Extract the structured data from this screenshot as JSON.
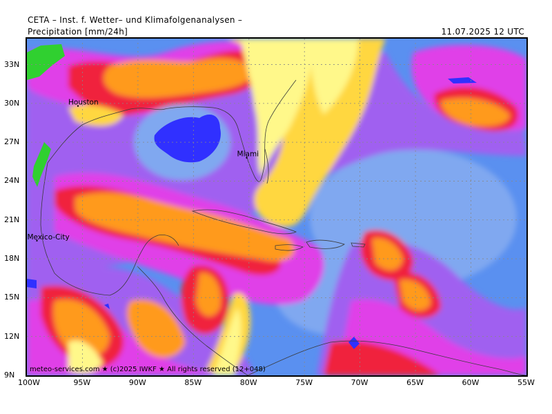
{
  "header": {
    "title": "CETA – Inst. f. Wetter– und Klimafolgenanalysen –",
    "subtitle": "Precipitation [mm/24h]",
    "valid_time": "11.07.2025 12 UTC"
  },
  "map": {
    "lon_range": [
      -100,
      -55
    ],
    "lat_range": [
      9,
      35
    ],
    "cities": [
      {
        "name": "Houston",
        "lon": -95.4,
        "lat": 29.8
      },
      {
        "name": "Miami",
        "lon": -80.2,
        "lat": 25.8
      },
      {
        "name": "Mexico-City",
        "lon": -99.1,
        "lat": 19.4
      }
    ],
    "credit": "meteo-services.com ★ (c)2025 IWKF ★ All rights reserved (12+048)",
    "x_ticks": [
      "100W",
      "95W",
      "90W",
      "85W",
      "80W",
      "75W",
      "70W",
      "65W",
      "60W",
      "55W"
    ],
    "y_ticks": [
      "33N",
      "30N",
      "27N",
      "24N",
      "21N",
      "18N",
      "15N",
      "12N",
      "9N"
    ],
    "palette": {
      "light_yellow": "#fff88a",
      "yellow": "#ffd740",
      "orange": "#ff9a1e",
      "red": "#f0203c",
      "magenta": "#e040e8",
      "violet": "#a060f0",
      "light_blue": "#80a8f0",
      "blue": "#5a90f0",
      "deep_blue": "#3030ff",
      "green": "#30d030"
    }
  }
}
